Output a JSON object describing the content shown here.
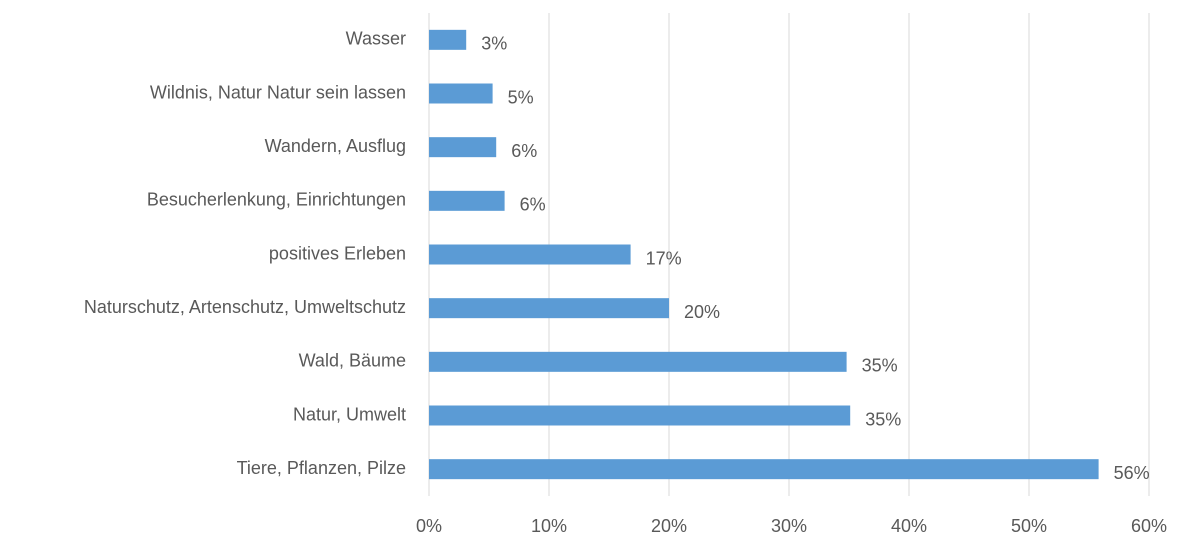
{
  "chart_data": {
    "type": "bar",
    "orientation": "horizontal",
    "categories": [
      "Wasser",
      "Wildnis, Natur Natur sein lassen",
      "Wandern, Ausflug",
      "Besucherlenkung, Einrichtungen",
      "positives Erleben",
      "Naturschutz, Artenschutz, Umweltschutz",
      "Wald, Bäume",
      "Natur, Umwelt",
      "Tiere, Pflanzen, Pilze"
    ],
    "values": [
      3.1,
      5.3,
      5.6,
      6.3,
      16.8,
      20.0,
      34.8,
      35.1,
      55.8
    ],
    "value_labels": [
      "3%",
      "5%",
      "6%",
      "6%",
      "17%",
      "20%",
      "35%",
      "35%",
      "56%"
    ],
    "color": "#5b9bd5",
    "xlim": [
      0,
      60
    ],
    "xticks": [
      {
        "value": 0,
        "label": "0%"
      },
      {
        "value": 10,
        "label": "10%"
      },
      {
        "value": 20,
        "label": "20%"
      },
      {
        "value": 30,
        "label": "30%"
      },
      {
        "value": 40,
        "label": "40%"
      },
      {
        "value": 50,
        "label": "50%"
      },
      {
        "value": 60,
        "label": "60%"
      }
    ],
    "grid": true
  }
}
